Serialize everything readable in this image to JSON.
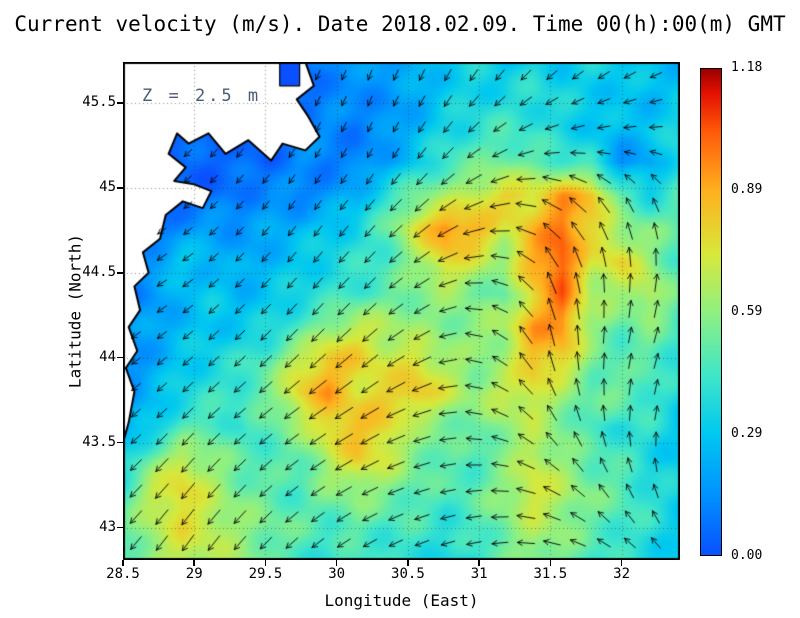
{
  "title": "Current velocity (m/s). Date 2018.02.09. Time 00(h):00(m) GMT",
  "annotation": "Z = 2.5 m",
  "axes": {
    "x_label": "Longitude (East)",
    "y_label": "Latitude (North)",
    "x_ticks": [
      28.5,
      29,
      29.5,
      30,
      30.5,
      31,
      31.5,
      32
    ],
    "y_ticks": [
      43,
      43.5,
      44,
      44.5,
      45,
      45.5
    ]
  },
  "colorbar": {
    "tick_labels": [
      "1.18",
      "0.89",
      "0.59",
      "0.29",
      "0.00"
    ],
    "min": 0.0,
    "max": 1.18
  },
  "colors": {
    "coastline": "#000000",
    "land": "#ffffff",
    "arrow": "#000000",
    "annotation_text": "#4a5a78",
    "river_marker": "#0a50ff"
  },
  "chart_data": {
    "type": "heatmap",
    "quantity": "current velocity magnitude",
    "units": "m/s",
    "depth_m": 2.5,
    "date": "2018.02.09",
    "time_gmt": "00:00",
    "lon_range": [
      28.5,
      32.41
    ],
    "lat_range": [
      42.81,
      45.74
    ],
    "value_range": [
      0.0,
      1.18
    ],
    "grid_cols": 20,
    "grid_rows": 16,
    "values": [
      [
        0.05,
        0.05,
        0.05,
        0.05,
        0.05,
        0.05,
        0.05,
        0.15,
        0.15,
        0.2,
        0.25,
        0.3,
        0.35,
        0.3,
        0.35,
        0.3,
        0.35,
        0.3,
        0.3,
        0.25
      ],
      [
        0.05,
        0.05,
        0.05,
        0.05,
        0.05,
        0.05,
        0.05,
        0.1,
        0.15,
        0.15,
        0.2,
        0.3,
        0.35,
        0.35,
        0.4,
        0.35,
        0.3,
        0.3,
        0.25,
        0.3
      ],
      [
        0.05,
        0.05,
        0.05,
        0.05,
        0.05,
        0.05,
        0.1,
        0.15,
        0.1,
        0.15,
        0.25,
        0.35,
        0.4,
        0.45,
        0.4,
        0.35,
        0.3,
        0.25,
        0.3,
        0.35
      ],
      [
        0.05,
        0.05,
        0.05,
        0.05,
        0.05,
        0.05,
        0.15,
        0.1,
        0.1,
        0.2,
        0.3,
        0.45,
        0.5,
        0.55,
        0.5,
        0.45,
        0.4,
        0.15,
        0.2,
        0.4
      ],
      [
        0.05,
        0.05,
        0.05,
        0.05,
        0.1,
        0.15,
        0.1,
        0.15,
        0.25,
        0.4,
        0.55,
        0.6,
        0.7,
        0.8,
        0.75,
        0.9,
        0.85,
        0.5,
        0.35,
        0.45
      ],
      [
        0.05,
        0.05,
        0.15,
        0.2,
        0.15,
        0.2,
        0.25,
        0.3,
        0.35,
        0.5,
        0.75,
        0.95,
        0.9,
        0.7,
        0.85,
        1.0,
        0.8,
        0.6,
        0.55,
        0.5
      ],
      [
        0.1,
        0.2,
        0.3,
        0.25,
        0.2,
        0.25,
        0.3,
        0.35,
        0.4,
        0.45,
        0.6,
        0.8,
        0.7,
        0.6,
        0.9,
        1.05,
        0.7,
        0.8,
        0.6,
        0.45
      ],
      [
        0.1,
        0.15,
        0.25,
        0.3,
        0.25,
        0.3,
        0.35,
        0.4,
        0.45,
        0.5,
        0.55,
        0.6,
        0.55,
        0.5,
        0.8,
        1.0,
        0.65,
        0.6,
        0.7,
        0.5
      ],
      [
        0.15,
        0.2,
        0.25,
        0.3,
        0.3,
        0.35,
        0.45,
        0.6,
        0.7,
        0.65,
        0.6,
        0.55,
        0.6,
        0.65,
        0.9,
        0.95,
        0.6,
        0.5,
        0.55,
        0.45
      ],
      [
        0.1,
        0.2,
        0.3,
        0.35,
        0.4,
        0.5,
        0.7,
        0.85,
        0.8,
        0.7,
        0.75,
        0.65,
        0.55,
        0.6,
        0.85,
        0.8,
        0.55,
        0.45,
        0.5,
        0.4
      ],
      [
        0.15,
        0.25,
        0.35,
        0.4,
        0.45,
        0.55,
        0.8,
        0.9,
        0.75,
        0.8,
        0.85,
        0.7,
        0.6,
        0.7,
        0.75,
        0.6,
        0.5,
        0.55,
        0.45,
        0.35
      ],
      [
        0.2,
        0.3,
        0.45,
        0.5,
        0.4,
        0.5,
        0.6,
        0.8,
        0.85,
        0.8,
        0.6,
        0.55,
        0.5,
        0.6,
        0.65,
        0.55,
        0.45,
        0.4,
        0.4,
        0.3
      ],
      [
        0.35,
        0.55,
        0.7,
        0.6,
        0.5,
        0.45,
        0.5,
        0.65,
        0.8,
        0.7,
        0.55,
        0.5,
        0.45,
        0.55,
        0.7,
        0.6,
        0.5,
        0.45,
        0.35,
        0.3
      ],
      [
        0.45,
        0.7,
        0.8,
        0.65,
        0.55,
        0.5,
        0.45,
        0.55,
        0.6,
        0.55,
        0.5,
        0.45,
        0.5,
        0.6,
        0.75,
        0.65,
        0.55,
        0.5,
        0.4,
        0.35
      ],
      [
        0.5,
        0.65,
        0.75,
        0.7,
        0.6,
        0.55,
        0.5,
        0.45,
        0.5,
        0.45,
        0.45,
        0.4,
        0.45,
        0.55,
        0.65,
        0.6,
        0.5,
        0.45,
        0.4,
        0.3
      ],
      [
        0.45,
        0.6,
        0.7,
        0.65,
        0.6,
        0.5,
        0.45,
        0.4,
        0.45,
        0.4,
        0.4,
        0.35,
        0.4,
        0.5,
        0.6,
        0.55,
        0.45,
        0.4,
        0.35,
        0.3
      ]
    ],
    "arrow_field": {
      "cols": 10,
      "rows": 8,
      "angle_convention": "degrees counterclockwise from east",
      "angles_deg": [
        [
          220,
          225,
          235,
          245,
          250,
          245,
          235,
          225,
          215,
          205
        ],
        [
          215,
          225,
          235,
          240,
          245,
          235,
          215,
          195,
          185,
          180
        ],
        [
          210,
          220,
          230,
          235,
          230,
          220,
          195,
          150,
          120,
          110
        ],
        [
          210,
          215,
          225,
          230,
          225,
          210,
          170,
          110,
          90,
          80
        ],
        [
          215,
          220,
          225,
          225,
          220,
          205,
          150,
          100,
          80,
          70
        ],
        [
          220,
          225,
          220,
          215,
          210,
          195,
          160,
          120,
          90,
          75
        ],
        [
          225,
          230,
          225,
          215,
          205,
          195,
          180,
          150,
          120,
          100
        ],
        [
          230,
          235,
          230,
          220,
          210,
          200,
          190,
          170,
          150,
          130
        ]
      ]
    },
    "colormap_stops": [
      {
        "v": 0.0,
        "c": "#0a50ff"
      },
      {
        "v": 0.12,
        "c": "#0090ff"
      },
      {
        "v": 0.25,
        "c": "#00c8f0"
      },
      {
        "v": 0.37,
        "c": "#40e6c8"
      },
      {
        "v": 0.5,
        "c": "#90f080"
      },
      {
        "v": 0.62,
        "c": "#d8e83a"
      },
      {
        "v": 0.75,
        "c": "#ffb01e"
      },
      {
        "v": 0.87,
        "c": "#ff5a0a"
      },
      {
        "v": 0.95,
        "c": "#e41000"
      },
      {
        "v": 1.0,
        "c": "#9a0000"
      }
    ],
    "coastline": [
      [
        29.78,
        45.74
      ],
      [
        29.84,
        45.6
      ],
      [
        29.72,
        45.52
      ],
      [
        29.8,
        45.42
      ],
      [
        29.88,
        45.3
      ],
      [
        29.78,
        45.22
      ],
      [
        29.62,
        45.26
      ],
      [
        29.54,
        45.16
      ],
      [
        29.38,
        45.28
      ],
      [
        29.22,
        45.2
      ],
      [
        29.1,
        45.32
      ],
      [
        28.96,
        45.26
      ],
      [
        28.88,
        45.32
      ],
      [
        28.82,
        45.2
      ],
      [
        28.94,
        45.12
      ],
      [
        28.86,
        45.04
      ],
      [
        29.0,
        45.02
      ],
      [
        29.12,
        44.98
      ],
      [
        29.06,
        44.88
      ],
      [
        28.92,
        44.92
      ],
      [
        28.8,
        44.84
      ],
      [
        28.76,
        44.7
      ],
      [
        28.64,
        44.62
      ],
      [
        28.68,
        44.5
      ],
      [
        28.58,
        44.42
      ],
      [
        28.62,
        44.28
      ],
      [
        28.54,
        44.18
      ],
      [
        28.6,
        44.04
      ],
      [
        28.52,
        43.94
      ],
      [
        28.58,
        43.8
      ],
      [
        28.54,
        43.62
      ],
      [
        28.5,
        43.5
      ]
    ],
    "river_marker_rect": {
      "lon": [
        29.6,
        29.74
      ],
      "lat": [
        45.6,
        45.74
      ]
    }
  }
}
